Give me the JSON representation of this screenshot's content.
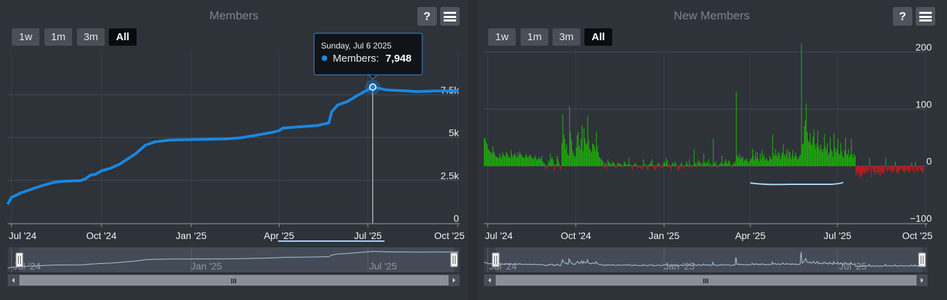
{
  "ranges": [
    "1w",
    "1m",
    "3m",
    "All"
  ],
  "help_label": "?",
  "tooltip": {
    "date": "Sunday, Jul 6 2025",
    "series": "Members",
    "value": "7,948"
  },
  "colors": {
    "members_line": "#1a87e0",
    "bars_up": "#1fae0a",
    "bars_down": "#cc1a1a",
    "navigator": "#a9c6e0",
    "navigator_fill": "#4e5662"
  },
  "scrollbar_grip": "III",
  "chart_data": [
    {
      "type": "line",
      "title": "Members",
      "series": [
        {
          "name": "Members"
        }
      ],
      "x_ticks": [
        "Jul '24",
        "Oct '24",
        "Jan '25",
        "Apr '25",
        "Jul '25",
        "Oct '25"
      ],
      "y_ticks": [
        "0",
        "2.5k",
        "5k",
        "7.5k"
      ],
      "navigator_ticks": [
        "Jul '24",
        "Jan '25",
        "Jul '25"
      ],
      "ylim": [
        0,
        10000
      ],
      "x_range": [
        "2024-06-27",
        "2025-10-03"
      ],
      "points": [
        [
          "2024-06-27",
          1100
        ],
        [
          "2024-07-01",
          1500
        ],
        [
          "2024-07-10",
          1750
        ],
        [
          "2024-07-25",
          2050
        ],
        [
          "2024-08-05",
          2250
        ],
        [
          "2024-08-15",
          2400
        ],
        [
          "2024-08-25",
          2450
        ],
        [
          "2024-09-10",
          2480
        ],
        [
          "2024-09-15",
          2600
        ],
        [
          "2024-09-20",
          2800
        ],
        [
          "2024-09-25",
          2850
        ],
        [
          "2024-10-01",
          3050
        ],
        [
          "2024-10-10",
          3200
        ],
        [
          "2024-10-20",
          3450
        ],
        [
          "2024-11-05",
          4050
        ],
        [
          "2024-11-15",
          4550
        ],
        [
          "2024-11-25",
          4750
        ],
        [
          "2024-12-10",
          4850
        ],
        [
          "2025-01-01",
          4880
        ],
        [
          "2025-01-20",
          4900
        ],
        [
          "2025-02-05",
          4920
        ],
        [
          "2025-02-20",
          4980
        ],
        [
          "2025-03-10",
          5150
        ],
        [
          "2025-03-25",
          5300
        ],
        [
          "2025-04-01",
          5400
        ],
        [
          "2025-04-05",
          5550
        ],
        [
          "2025-04-20",
          5620
        ],
        [
          "2025-05-10",
          5700
        ],
        [
          "2025-05-22",
          5850
        ],
        [
          "2025-05-25",
          6500
        ],
        [
          "2025-05-31",
          6900
        ],
        [
          "2025-06-10",
          7100
        ],
        [
          "2025-06-20",
          7450
        ],
        [
          "2025-07-06",
          7948
        ],
        [
          "2025-07-20",
          7780
        ],
        [
          "2025-08-10",
          7720
        ],
        [
          "2025-08-20",
          7680
        ],
        [
          "2025-09-10",
          7720
        ],
        [
          "2025-10-02",
          7730
        ]
      ]
    },
    {
      "type": "bar",
      "title": "New Members",
      "series": [
        {
          "name": "New Members"
        }
      ],
      "x_ticks": [
        "Jul '24",
        "Oct '24",
        "Jan '25",
        "Apr '25",
        "Jul '25",
        "Oct '25"
      ],
      "y_ticks": [
        "200",
        "100",
        "0",
        "−100"
      ],
      "navigator_ticks": [
        "Jul '24",
        "Jan '25",
        "Jul '25"
      ],
      "ylim": [
        -100,
        200
      ],
      "x_range": [
        "2024-06-27",
        "2025-10-03"
      ],
      "daily_values": [
        50,
        48,
        42,
        38,
        30,
        28,
        26,
        24,
        22,
        35,
        26,
        20,
        18,
        16,
        15,
        14,
        22,
        17,
        14,
        24,
        20,
        18,
        16,
        25,
        22,
        18,
        16,
        14,
        28,
        20,
        16,
        20,
        23,
        18,
        15,
        24,
        18,
        26,
        22,
        19,
        17,
        15,
        14,
        18,
        21,
        15,
        16,
        18,
        20,
        17,
        14,
        12,
        15,
        19,
        14,
        10,
        12,
        16,
        13,
        12,
        18,
        8,
        6,
        4,
        -6,
        2,
        -4,
        10,
        6,
        22,
        12,
        16,
        10,
        -8,
        4,
        2,
        18,
        12,
        6,
        -4,
        -6,
        40,
        90,
        55,
        48,
        30,
        38,
        22,
        18,
        105,
        60,
        46,
        28,
        22,
        18,
        16,
        32,
        54,
        60,
        36,
        30,
        48,
        72,
        26,
        66,
        48,
        40,
        38,
        88,
        45,
        30,
        28,
        24,
        40,
        38,
        34,
        26,
        60,
        35,
        24,
        16,
        14,
        12,
        10,
        8,
        -4,
        6,
        4,
        -6,
        12,
        7,
        5,
        4,
        3,
        8,
        6,
        4,
        -4,
        -2,
        6,
        5,
        4,
        4,
        3,
        -2,
        2,
        8,
        6,
        4,
        2,
        3,
        14,
        3,
        2,
        -3,
        -6,
        4,
        3,
        6,
        2,
        -4,
        -2,
        -2,
        -3,
        -6,
        -4,
        12,
        4,
        -2,
        3,
        -6,
        -8,
        3,
        4,
        8,
        12,
        -4,
        2,
        -8,
        -6,
        -2,
        4,
        6,
        2,
        -4,
        -2,
        -3,
        6,
        8,
        4,
        14,
        10,
        -2,
        3,
        -4,
        -8,
        4,
        6,
        2,
        8,
        4,
        -2,
        -10,
        -6,
        -4,
        4,
        6,
        -2,
        -6,
        -2,
        2,
        8,
        4,
        -3,
        12,
        3,
        -4,
        -2,
        2,
        30,
        4,
        6,
        -3,
        8,
        10,
        4,
        6,
        -2,
        5,
        22,
        6,
        4,
        8,
        4,
        12,
        2,
        6,
        -2,
        2,
        48,
        6,
        4,
        8,
        -4,
        -2,
        3,
        4,
        6,
        18,
        3,
        4,
        8,
        12,
        4,
        6,
        10,
        8,
        2,
        -4,
        2,
        6,
        4,
        8,
        130,
        18,
        15,
        22,
        12,
        18,
        14,
        16,
        8,
        12,
        10,
        14,
        8,
        6,
        10,
        12,
        14,
        30,
        18,
        10,
        26,
        14,
        24,
        12,
        8,
        22,
        12,
        28,
        16,
        20,
        10,
        14,
        12,
        8,
        10,
        18,
        14,
        12,
        55,
        22,
        18,
        30,
        20,
        16,
        25,
        22,
        12,
        18,
        24,
        38,
        20,
        16,
        22,
        30,
        14,
        26,
        24,
        12,
        18,
        28,
        14,
        18,
        24,
        16,
        12,
        14,
        18,
        20,
        215,
        38,
        40,
        70,
        80,
        110,
        60,
        45,
        42,
        58,
        40,
        36,
        52,
        64,
        38,
        30,
        40,
        62,
        34,
        28,
        38,
        30,
        24,
        30,
        56,
        34,
        28,
        40,
        20,
        24,
        50,
        30,
        26,
        16,
        58,
        32,
        24,
        30,
        48,
        22,
        20,
        40,
        26,
        18,
        15,
        28,
        50,
        22,
        20,
        30,
        16,
        20,
        48,
        20,
        14,
        22,
        18,
        -16,
        -12,
        -14,
        -10,
        -18,
        -22,
        -16,
        -12,
        -10,
        -14,
        -8,
        -12,
        -6,
        -10,
        14,
        -8,
        -20,
        -4,
        -10,
        -12,
        -16,
        -6,
        -12,
        -14,
        -10,
        -18,
        -8,
        -12,
        -14,
        -10,
        -6,
        14,
        -10,
        -8,
        -6,
        -4,
        -8,
        -10,
        -12,
        -8,
        -6,
        8,
        -10,
        -12,
        -14,
        -8,
        -6,
        -4,
        -6,
        -8,
        -10,
        -12,
        -8,
        -6,
        -10,
        -8,
        -12,
        -6,
        6,
        -8,
        -4,
        -12,
        8,
        -10,
        -6,
        -8,
        -4,
        -6,
        -8,
        -10,
        -12
      ]
    }
  ]
}
